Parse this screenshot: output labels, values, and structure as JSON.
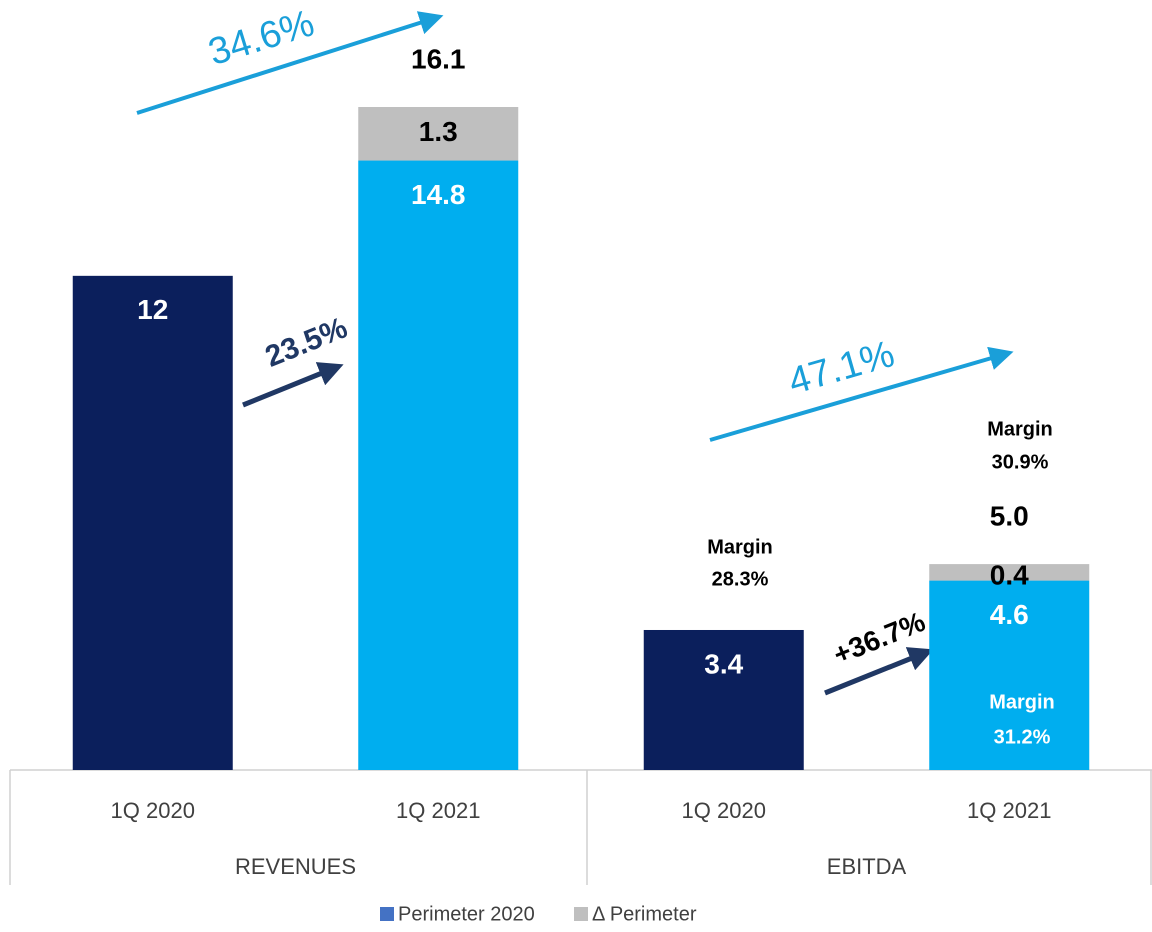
{
  "chart_data": {
    "type": "stacked_bar",
    "groups": [
      "REVENUES",
      "EBITDA"
    ],
    "categories": [
      "1Q 2020",
      "1Q 2021",
      "1Q 2020",
      "1Q 2021"
    ],
    "series": [
      {
        "name": "Perimeter 2020",
        "color": "#4472c4",
        "point_colors": [
          "#0b1f5c",
          "#00aeef",
          "#0b1f5c",
          "#00aeef"
        ],
        "label_color": "#ffffff",
        "values": [
          12,
          14.8,
          3.4,
          4.6
        ]
      },
      {
        "name": "Δ Perimeter",
        "color": "#bfbfbf",
        "point_colors": [
          "#bfbfbf",
          "#bfbfbf",
          "#bfbfbf",
          "#bfbfbf"
        ],
        "label_color": "#000000",
        "values": [
          null,
          1.3,
          null,
          0.4
        ]
      }
    ],
    "totals": [
      null,
      16.1,
      null,
      5.0
    ],
    "total_value_labels": [
      null,
      "16.1",
      null,
      "5.0"
    ],
    "growth_labels": [
      "34.6%",
      "23.5%",
      "47.1%",
      "+36.7%"
    ],
    "margin_labels": [
      [
        "Margin",
        "28.3%"
      ],
      [
        "Margin",
        "30.9%"
      ],
      [
        "Margin",
        "31.2%"
      ]
    ]
  }
}
